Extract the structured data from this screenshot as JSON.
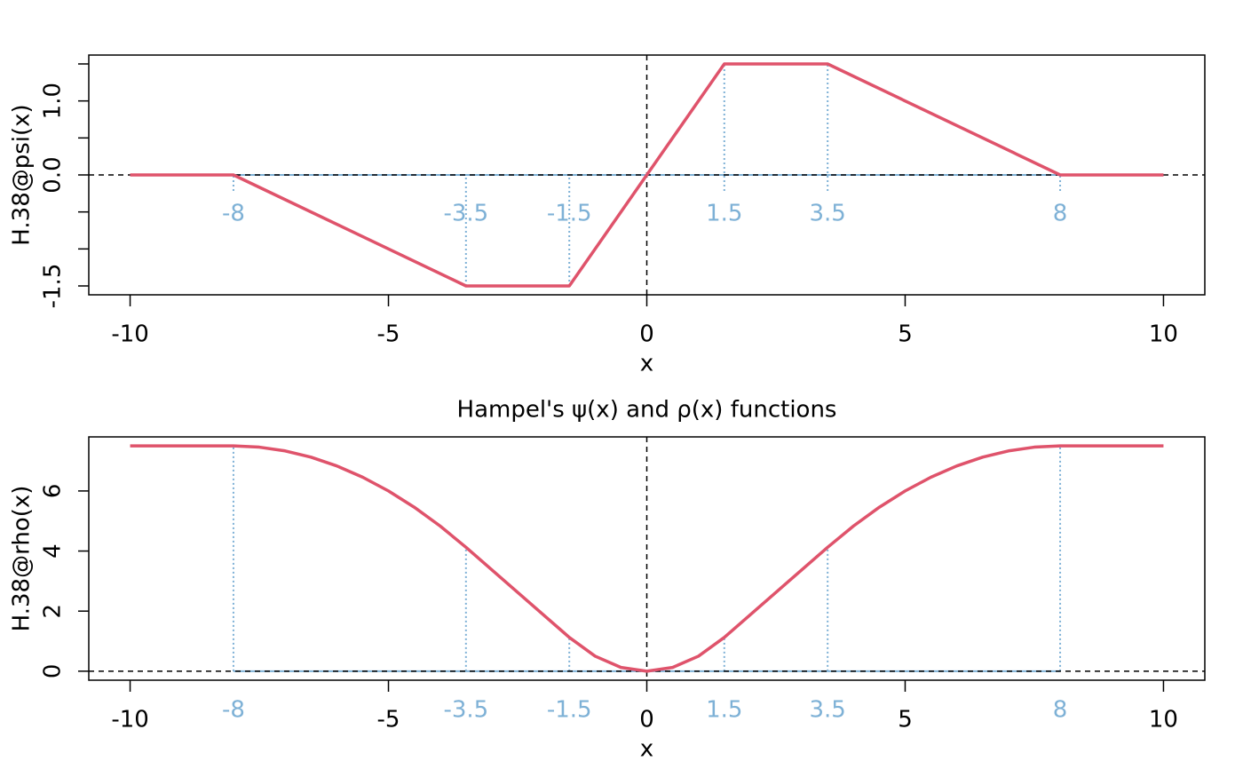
{
  "chart_data": [
    {
      "type": "line",
      "xlabel": "x",
      "ylabel": "H.38@psi(x)",
      "x": [
        -10,
        -8,
        -3.5,
        -1.5,
        0,
        1.5,
        3.5,
        8,
        10
      ],
      "values": [
        0,
        0,
        -1.5,
        -1.5,
        0,
        1.5,
        1.5,
        0,
        0
      ],
      "color": "#DF536B",
      "knots": [
        -8,
        -3.5,
        -1.5,
        1.5,
        3.5,
        8
      ],
      "knot_color": "#7EB1D6",
      "knot_labels": "inside",
      "xlim": [
        -10.8,
        10.8
      ],
      "ylim": [
        -1.62,
        1.62
      ],
      "xticks": [
        -10,
        -5,
        0,
        5,
        10
      ],
      "yticks": [
        -1.5,
        {
          "value": 0,
          "label": "0.0"
        },
        {
          "value": 1,
          "label": "1.0"
        }
      ],
      "yticks_minor": [
        -1,
        -0.5,
        0.5,
        1.5
      ],
      "zero_lines": true
    },
    {
      "type": "line",
      "title": "Hampel's ψ(x) and ρ(x) functions",
      "xlabel": "x",
      "ylabel": "H.38@rho(x)",
      "x": [
        -10,
        -9.5,
        -9,
        -8.5,
        -8,
        -7.5,
        -7,
        -6.5,
        -6,
        -5.5,
        -5,
        -4.5,
        -4,
        -3.5,
        -3,
        -2.5,
        -2,
        -1.5,
        -1,
        -0.5,
        0,
        0.5,
        1,
        1.5,
        2,
        2.5,
        3,
        3.5,
        4,
        4.5,
        5,
        5.5,
        6,
        6.5,
        7,
        7.5,
        8,
        8.5,
        9,
        9.5,
        10
      ],
      "values": [
        7.5,
        7.5,
        7.5,
        7.5,
        7.5,
        7.4583,
        7.3333,
        7.125,
        6.8333,
        6.4583,
        6.0,
        5.4583,
        4.8333,
        4.125,
        3.375,
        2.625,
        1.875,
        1.125,
        0.5,
        0.125,
        0,
        0.125,
        0.5,
        1.125,
        1.875,
        2.625,
        3.375,
        4.125,
        4.8333,
        5.4583,
        6.0,
        6.4583,
        6.8333,
        7.125,
        7.3333,
        7.4583,
        7.5,
        7.5,
        7.5,
        7.5,
        7.5
      ],
      "color": "#DF536B",
      "knots": [
        -8,
        -3.5,
        -1.5,
        1.5,
        3.5,
        8
      ],
      "knot_color": "#7EB1D6",
      "knot_labels": "margin",
      "xlim": [
        -10.8,
        10.8
      ],
      "ylim": [
        -0.3,
        7.8
      ],
      "xticks": [
        -10,
        -5,
        0,
        5,
        10
      ],
      "yticks": [
        0,
        2,
        4,
        6
      ],
      "zero_lines": true
    }
  ]
}
